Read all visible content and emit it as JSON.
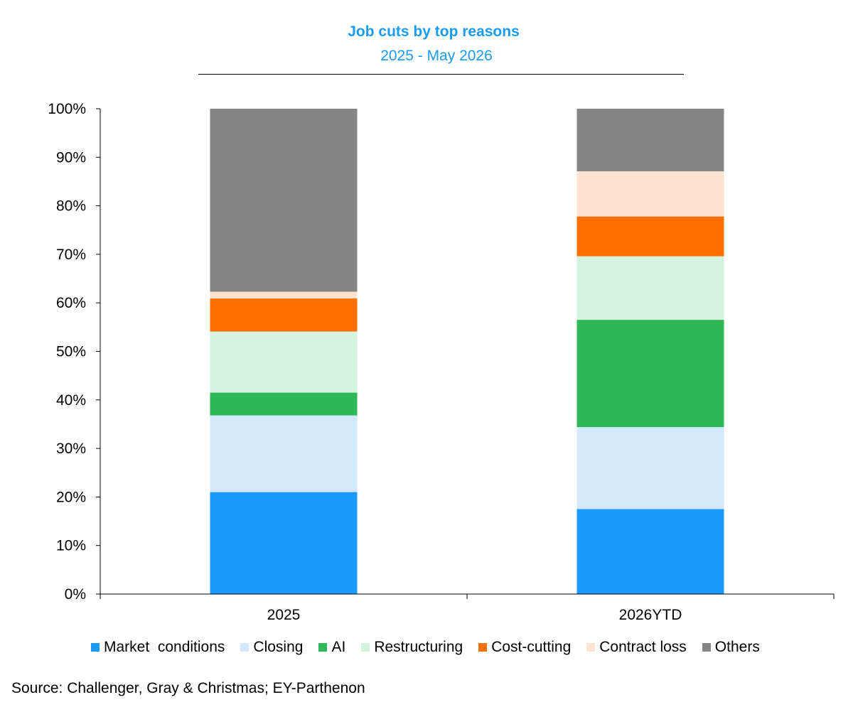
{
  "chart_data": {
    "type": "bar",
    "stacked": true,
    "title": "Job cuts by top reasons",
    "subtitle": "2025 - May 2026",
    "categories": [
      "2025",
      "2026YTD"
    ],
    "yticks": [
      "0%",
      "10%",
      "20%",
      "30%",
      "40%",
      "50%",
      "60%",
      "70%",
      "80%",
      "90%",
      "100%"
    ],
    "ylim": [
      0,
      100
    ],
    "series": [
      {
        "name": "Market  conditions",
        "color": "#1a9bfc",
        "values": [
          21.0,
          17.5
        ]
      },
      {
        "name": "Closing",
        "color": "#d3e8fb",
        "values": [
          15.8,
          16.9
        ]
      },
      {
        "name": "AI",
        "color": "#2eb857",
        "values": [
          4.7,
          22.1
        ]
      },
      {
        "name": "Restructuring",
        "color": "#d4f4e0",
        "values": [
          12.6,
          13.1
        ]
      },
      {
        "name": "Cost-cutting",
        "color": "#ff6f00",
        "values": [
          6.8,
          8.2
        ]
      },
      {
        "name": "Contract loss",
        "color": "#fde3d0",
        "values": [
          1.4,
          9.3
        ]
      },
      {
        "name": "Others",
        "color": "#858585",
        "values": [
          37.7,
          12.9
        ]
      }
    ],
    "legend": "bottom",
    "grid": false
  },
  "source": "Source: Challenger, Gray & Christmas; EY-Parthenon"
}
